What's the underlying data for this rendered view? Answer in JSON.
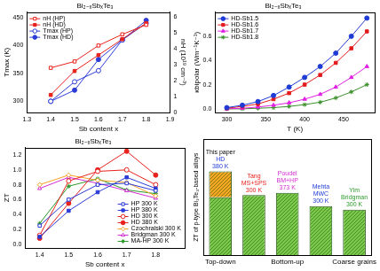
{
  "chart_data": [
    {
      "type": "line",
      "title": "Bi₂₋ₓSbₓTe₃",
      "x_label": "Sb content x",
      "y_label": "Tmax (K)",
      "y2_label": "nH (10¹⁹ cm⁻³)",
      "x": [
        1.4,
        1.5,
        1.6,
        1.7,
        1.8
      ],
      "xlim": [
        1.3,
        1.9
      ],
      "xticks": [
        1.3,
        1.4,
        1.5,
        1.6,
        1.7,
        1.8,
        1.9
      ],
      "ylim": [
        280,
        460
      ],
      "yticks": [
        300,
        350,
        400,
        450
      ],
      "y2lim": [
        0,
        6.3
      ],
      "y2ticks": [
        0,
        1,
        2,
        3,
        4,
        5,
        6
      ],
      "grid": false,
      "legend": "upper left",
      "series": [
        {
          "name": "nH (HP)",
          "color": "#e8211c",
          "marker": "square_open",
          "axis": "y2",
          "values": [
            2.8,
            3.2,
            4.2,
            4.9,
            5.5
          ]
        },
        {
          "name": "nH (HD)",
          "color": "#e8211c",
          "marker": "square",
          "axis": "y2",
          "values": [
            1.1,
            2.6,
            3.6,
            4.6,
            5.6
          ]
        },
        {
          "name": "Tmax (HP)",
          "color": "#2b3bd6",
          "marker": "circle_open",
          "values": [
            300,
            335,
            355,
            410,
            440
          ]
        },
        {
          "name": "Tmax (HD)",
          "color": "#2b3bd6",
          "marker": "circle",
          "values": [
            300,
            320,
            375,
            410,
            445
          ]
        }
      ]
    },
    {
      "type": "line",
      "title": "Bi₂₋ₓSbₓTe₃",
      "x_label": "T (K)",
      "y_label": "κbipolar (Wm⁻¹K⁻¹)",
      "x": [
        300,
        320,
        340,
        360,
        380,
        400,
        420,
        440,
        460,
        480
      ],
      "xlim": [
        285,
        490
      ],
      "xticks": [
        300,
        350,
        400,
        450
      ],
      "ylim": [
        -0.03,
        0.8
      ],
      "yticks": [
        {
          "value": 0,
          "label": "0.0"
        },
        0.2,
        0.4,
        0.6
      ],
      "grid": false,
      "legend": "upper left",
      "series": [
        {
          "name": "HD-Sb1.5",
          "color": "#1f3bd6",
          "marker": "circle",
          "values": [
            0.01,
            0.03,
            0.06,
            0.11,
            0.18,
            0.26,
            0.35,
            0.46,
            0.6,
            0.75
          ]
        },
        {
          "name": "HD-Sb1.6",
          "color": "#e41a1c",
          "marker": "square",
          "values": [
            0.005,
            0.02,
            0.04,
            0.08,
            0.13,
            0.2,
            0.28,
            0.38,
            0.5,
            0.64
          ]
        },
        {
          "name": "HD-Sb1.7",
          "color": "#e020e0",
          "marker": "triangle",
          "values": [
            0,
            0.005,
            0.015,
            0.03,
            0.05,
            0.08,
            0.12,
            0.18,
            0.26,
            0.35
          ]
        },
        {
          "name": "HD-Sb1.8",
          "color": "#3a8f2a",
          "marker": "star",
          "values": [
            0,
            0,
            0.005,
            0.01,
            0.02,
            0.035,
            0.055,
            0.09,
            0.14,
            0.2
          ]
        }
      ]
    },
    {
      "type": "line",
      "title": "Bi₂₋ₓSbₓTe₃",
      "x_label": "Sb content x",
      "y_label": "ZT",
      "x": [
        1.4,
        1.5,
        1.6,
        1.7,
        1.8
      ],
      "xlim": [
        1.35,
        1.9
      ],
      "xticks": [
        1.4,
        1.5,
        1.6,
        1.7,
        1.8
      ],
      "ylim": [
        -0.05,
        1.3
      ],
      "yticks": [
        {
          "value": 0,
          "label": "0.0"
        },
        0.2,
        0.4,
        0.6,
        0.8,
        {
          "value": 1,
          "label": "1.0"
        },
        1.2
      ],
      "grid": false,
      "legend": "lower right",
      "series": [
        {
          "name": "HP 300 K",
          "color": "#2b3bd6",
          "marker": "square_open",
          "values": [
            0.25,
            0.6,
            0.8,
            0.82,
            0.72
          ]
        },
        {
          "name": "HP 380 K",
          "color": "#2b3bd6",
          "marker": "square",
          "values": [
            0.1,
            0.45,
            0.7,
            0.9,
            0.75
          ]
        },
        {
          "name": "HD 300 K",
          "color": "#e8211c",
          "marker": "circle_open",
          "values": [
            0.12,
            0.85,
            0.98,
            1.0,
            0.8
          ]
        },
        {
          "name": "HD 380 K",
          "color": "#e8211c",
          "marker": "circle",
          "values": [
            0.08,
            0.55,
            1.0,
            1.25,
            0.93
          ]
        },
        {
          "name": "Czochralski 300 K",
          "color": "#f5a020",
          "marker": "diamond_open",
          "values": [
            0.8,
            0.93,
            0.86,
            0.83,
            0.65
          ]
        },
        {
          "name": "Bridgman 300 K",
          "color": "#d02cd0",
          "marker": "triangle_open",
          "values": [
            0.75,
            0.9,
            0.82,
            0.72,
            0.62
          ]
        },
        {
          "name": "MA-HP 300 K",
          "color": "#2a9a2a",
          "marker": "star",
          "values": [
            0.28,
            0.78,
            0.88,
            0.73,
            0.68
          ]
        }
      ]
    },
    {
      "type": "bar",
      "y_label": "ZT of p-type Bi₂Te₃-based alloys",
      "categories": [
        "Top-down",
        null,
        "Bottom-up",
        null,
        "Coarse grains"
      ],
      "ylim": [
        0,
        2.6
      ],
      "tick_labels": "x",
      "grid": false,
      "stacked": true,
      "series": [
        {
          "color": "#7cc84a",
          "values": [
            1.3,
            1.35,
            1.4,
            1.1,
            1.02
          ]
        },
        {
          "color": "#f5a623",
          "values": [
            0.58,
            null,
            null,
            null,
            null
          ]
        }
      ],
      "annotations": [
        {
          "lines": [
            "This paper",
            "HD",
            "380 K"
          ],
          "colors": [
            "#000000",
            "#1f3bd6",
            "#1f3bd6"
          ]
        },
        {
          "lines": [
            "Tang",
            "MS+SPS",
            "300 K"
          ],
          "colors": [
            "#e8211c",
            "#e8211c",
            "#e8211c"
          ]
        },
        {
          "lines": [
            "Poudel",
            "BM+HP",
            "373 K"
          ],
          "colors": [
            "#d02cd0",
            "#d02cd0",
            "#d02cd0"
          ]
        },
        {
          "lines": [
            "Mehta",
            "MWC",
            "300 K"
          ],
          "colors": [
            "#1f3bd6",
            "#1f3bd6",
            "#1f3bd6"
          ]
        },
        {
          "lines": [
            "Yim",
            "Bridgman",
            "300 K"
          ],
          "colors": [
            "#2a9a2a",
            "#2a9a2a",
            "#2a9a2a"
          ]
        }
      ]
    }
  ]
}
